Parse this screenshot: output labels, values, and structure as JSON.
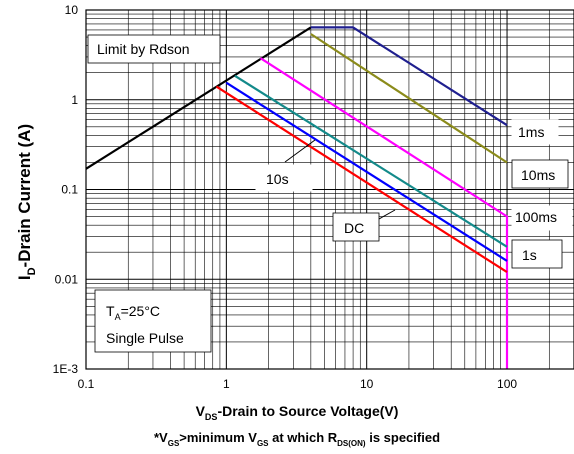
{
  "chart_data": {
    "type": "line",
    "x_scale": "log",
    "y_scale": "log",
    "xlim": [
      0.1,
      300
    ],
    "ylim": [
      0.001,
      10
    ],
    "x_ticks": [
      {
        "v": 0.1,
        "label": "0.1"
      },
      {
        "v": 1,
        "label": "1"
      },
      {
        "v": 10,
        "label": "10"
      },
      {
        "v": 100,
        "label": "100"
      }
    ],
    "y_ticks": [
      {
        "v": 10,
        "label": "10"
      },
      {
        "v": 1,
        "label": "1"
      },
      {
        "v": 0.1,
        "label": "0.1"
      },
      {
        "v": 0.01,
        "label": "0.01"
      },
      {
        "v": 0.001,
        "label": "1E-3"
      }
    ],
    "ylabel": {
      "main": "I",
      "sub": "D",
      "rest": "-Drain Current (A)"
    },
    "xlabel": {
      "prefix": "V",
      "sub": "DS",
      "rest": "-Drain to Source Voltage(V)"
    },
    "footnote": {
      "p1": "*V",
      "s1": "GS",
      "p2": ">minimum V",
      "s2": "GS",
      "p3": " at which R",
      "s3": "DS(ON)",
      "p4": " is specified"
    },
    "grid": true,
    "series": [
      {
        "name": "Limit by Rdson",
        "color": "#000000",
        "x": [
          0.1,
          4.0
        ],
        "y": [
          0.17,
          6.4
        ]
      },
      {
        "name": "1ms",
        "color": "#1f1f8f",
        "x": [
          4.0,
          8.0,
          100
        ],
        "y": [
          6.4,
          6.4,
          0.52
        ]
      },
      {
        "name": "10ms",
        "color": "#8b8b1a",
        "x": [
          4.0,
          100
        ],
        "y": [
          5.4,
          0.2
        ]
      },
      {
        "name": "100ms",
        "color": "#ff00ff",
        "x": [
          1.75,
          100,
          100
        ],
        "y": [
          2.9,
          0.05,
          0.001
        ]
      },
      {
        "name": "1s",
        "color": "#138a8a",
        "x": [
          1.15,
          100
        ],
        "y": [
          1.85,
          0.023
        ]
      },
      {
        "name": "10s",
        "color": "#0000ff",
        "x": [
          1.0,
          100
        ],
        "y": [
          1.55,
          0.016
        ]
      },
      {
        "name": "DC",
        "color": "#ff0000",
        "x": [
          0.85,
          100
        ],
        "y": [
          1.4,
          0.012
        ]
      }
    ],
    "annotations": {
      "rdson": "Limit by Rdson",
      "ms1": "1ms",
      "ms10": "10ms",
      "ms100": "100ms",
      "s1": "1s",
      "s10": "10s",
      "dc": "DC",
      "ta_main": "T",
      "ta_sub": "A",
      "ta_rest": "=25°C",
      "pulse": "Single Pulse"
    }
  }
}
